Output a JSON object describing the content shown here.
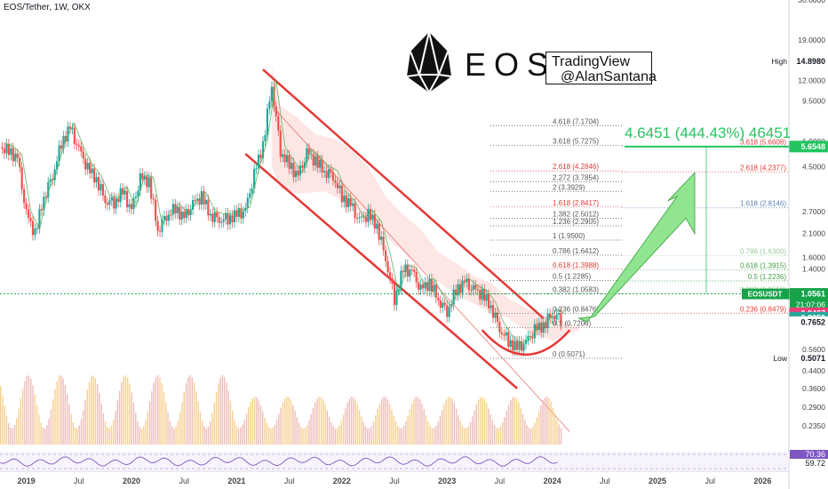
{
  "header": {
    "symbol_title": "EOS/Tether, 1W, OKX"
  },
  "logo": {
    "text": "EOS"
  },
  "credit": {
    "line1": "TradingView",
    "line2": "@AlanSantana"
  },
  "annotation": {
    "gain_text": "4.6451 (444.43%) 46451"
  },
  "colors": {
    "up": "#26a69a",
    "down": "#ef5350",
    "channel": "#e53935",
    "fib_red": "#e53935",
    "fib_green": "#4caf50",
    "fib_blue": "#5b7fb3",
    "gain": "#22c55e",
    "volume_up": "#f4c06b",
    "volume_down": "#e9a7a2",
    "rsi": "#7e57c2"
  },
  "chart_data": {
    "type": "candlestick",
    "scale": "log",
    "ylim": [
      0.19,
      30
    ],
    "xlim": [
      "2018-10",
      "2026-04"
    ],
    "x_tick_labels": [
      "2019",
      "Jul",
      "2020",
      "Jul",
      "2021",
      "Jul",
      "2022",
      "Jul",
      "2023",
      "Jul",
      "2024",
      "Jul",
      "2025",
      "Jul",
      "2026"
    ],
    "y_tick_labels": [
      "30.0000",
      "19.0000",
      "12.0000",
      "9.5000",
      "6.0000",
      "4.5000",
      "2.7000",
      "2.1000",
      "1.6000",
      "1.4000",
      "0.5600",
      "0.4400",
      "0.3600",
      "0.2900",
      "0.2350"
    ],
    "price_labels": [
      {
        "label": "High",
        "value": "14.8980",
        "y": 14.898,
        "color": "#ffffff",
        "text": "#131722"
      },
      {
        "label": "",
        "value": "5.6548",
        "y": 5.6548,
        "color": "#22c55e",
        "text": "#ffffff"
      },
      {
        "label": "",
        "value": "1.0561",
        "y": 1.0561,
        "color": "#16a34a",
        "text": "#ffffff",
        "ticker": "EOSUSDT",
        "sub": "21:07:06"
      },
      {
        "label": "",
        "value": "0.8467",
        "y": 0.8467,
        "color": "#ec407a",
        "text": "#ffffff"
      },
      {
        "label": "",
        "value": "0.8050",
        "y": 0.805,
        "color": "#26a69a",
        "text": "#ffffff"
      },
      {
        "label": "",
        "value": "0.7652",
        "y": 0.7652,
        "color": "#ffffff",
        "text": "#131722"
      },
      {
        "label": "Low",
        "value": "0.5071",
        "y": 0.5071,
        "color": "#ffffff",
        "text": "#131722"
      }
    ],
    "rsi_labels": [
      {
        "value": "70.36",
        "color": "#7e57c2",
        "text": "#ffffff"
      },
      {
        "value": "59.72",
        "color": "#ffffff",
        "text": "#131722"
      }
    ],
    "fib_left": [
      {
        "label": "4.618 (7.1704)",
        "y": 7.1704,
        "color": "#555555"
      },
      {
        "label": "3.618 (5.7275)",
        "y": 5.7275,
        "color": "#555555"
      },
      {
        "label": "2.618 (4.2846)",
        "y": 4.2846,
        "color": "#e53935"
      },
      {
        "label": "2.272 (3.7854)",
        "y": 3.7854,
        "color": "#555555"
      },
      {
        "label": "2 (3.3929)",
        "y": 3.3929,
        "color": "#555555"
      },
      {
        "label": "1.618 (2.8417)",
        "y": 2.8417,
        "color": "#e53935"
      },
      {
        "label": "1.382 (2.5012)",
        "y": 2.5012,
        "color": "#555555"
      },
      {
        "label": "1.236 (2.2905)",
        "y": 2.2905,
        "color": "#555555"
      },
      {
        "label": "1 (1.9500)",
        "y": 1.95,
        "color": "#555555"
      },
      {
        "label": "0.786 (1.6412)",
        "y": 1.6412,
        "color": "#555555"
      },
      {
        "label": "0.618 (1.3988)",
        "y": 1.3988,
        "color": "#e53935"
      },
      {
        "label": "0.5 (1.2285)",
        "y": 1.2285,
        "color": "#555555"
      },
      {
        "label": "0.382 (1.0583)",
        "y": 1.0583,
        "color": "#555555"
      },
      {
        "label": "0.236 (0.8476)",
        "y": 0.8476,
        "color": "#555555"
      },
      {
        "label": "0.1 (0.7206)",
        "y": 0.7206,
        "color": "#555555"
      },
      {
        "label": "0 (0.5071)",
        "y": 0.5071,
        "color": "#555555"
      }
    ],
    "fib_right": [
      {
        "label": "3.618 (5.6608)",
        "y": 5.6608,
        "color": "#e53935"
      },
      {
        "label": "2.618 (4.2377)",
        "y": 4.2377,
        "color": "#e53935"
      },
      {
        "label": "1.618 (2.8146)",
        "y": 2.8146,
        "color": "#5b7fb3"
      },
      {
        "label": "0.786 (1.6300)",
        "y": 1.63,
        "color": "#9ccc9c"
      },
      {
        "label": "0.618 (1.3915)",
        "y": 1.3915,
        "color": "#43a047"
      },
      {
        "label": "0.5 (1.2236)",
        "y": 1.2236,
        "color": "#43a047"
      },
      {
        "label": "0.382 (1.0550)",
        "y": 1.055,
        "color": "#9ccc9c"
      },
      {
        "label": "0.236 (0.8479)",
        "y": 0.8479,
        "color": "#e53935"
      }
    ],
    "series": [
      {
        "name": "",
        "x": [
          "2018-10",
          "2018-11",
          "2018-12",
          "2019-01",
          "2019-02",
          "2019-03",
          "2019-04",
          "2019-05",
          "2019-06",
          "2019-07",
          "2019-08",
          "2019-09",
          "2019-10",
          "2019-11",
          "2019-12",
          "2020-01",
          "2020-02",
          "2020-03",
          "2020-04",
          "2020-05",
          "2020-06",
          "2020-07",
          "2020-08",
          "2020-09",
          "2020-10",
          "2020-11",
          "2020-12",
          "2021-01",
          "2021-02",
          "2021-03",
          "2021-04",
          "2021-05",
          "2021-06",
          "2021-07",
          "2021-08",
          "2021-09",
          "2021-10",
          "2021-11",
          "2021-12",
          "2022-01",
          "2022-02",
          "2022-03",
          "2022-04",
          "2022-05",
          "2022-06",
          "2022-07",
          "2022-08",
          "2022-09",
          "2022-10",
          "2022-11",
          "2022-12",
          "2023-01",
          "2023-02",
          "2023-03",
          "2023-04",
          "2023-05",
          "2023-06",
          "2023-07",
          "2023-08",
          "2023-09",
          "2023-10",
          "2023-11",
          "2023-12",
          "2024-01",
          "2024-02"
        ],
        "close": [
          5.6,
          5.4,
          4.9,
          2.6,
          2.1,
          3.2,
          4.1,
          5.9,
          7.0,
          5.4,
          4.4,
          3.9,
          3.1,
          3.0,
          3.4,
          2.7,
          3.9,
          3.8,
          2.2,
          2.6,
          2.8,
          2.5,
          2.9,
          3.2,
          2.6,
          2.5,
          2.5,
          2.6,
          2.7,
          4.1,
          5.8,
          11.5,
          5.4,
          4.6,
          4.0,
          5.2,
          4.8,
          4.3,
          4.1,
          3.2,
          2.9,
          2.4,
          2.6,
          2.3,
          1.6,
          1.0,
          1.4,
          1.35,
          1.1,
          1.2,
          1.0,
          0.87,
          1.1,
          1.2,
          1.1,
          1.05,
          0.92,
          0.72,
          0.62,
          0.57,
          0.6,
          0.7,
          0.74,
          0.85,
          0.8
        ]
      }
    ],
    "volume_range": [
      0,
      1
    ]
  }
}
